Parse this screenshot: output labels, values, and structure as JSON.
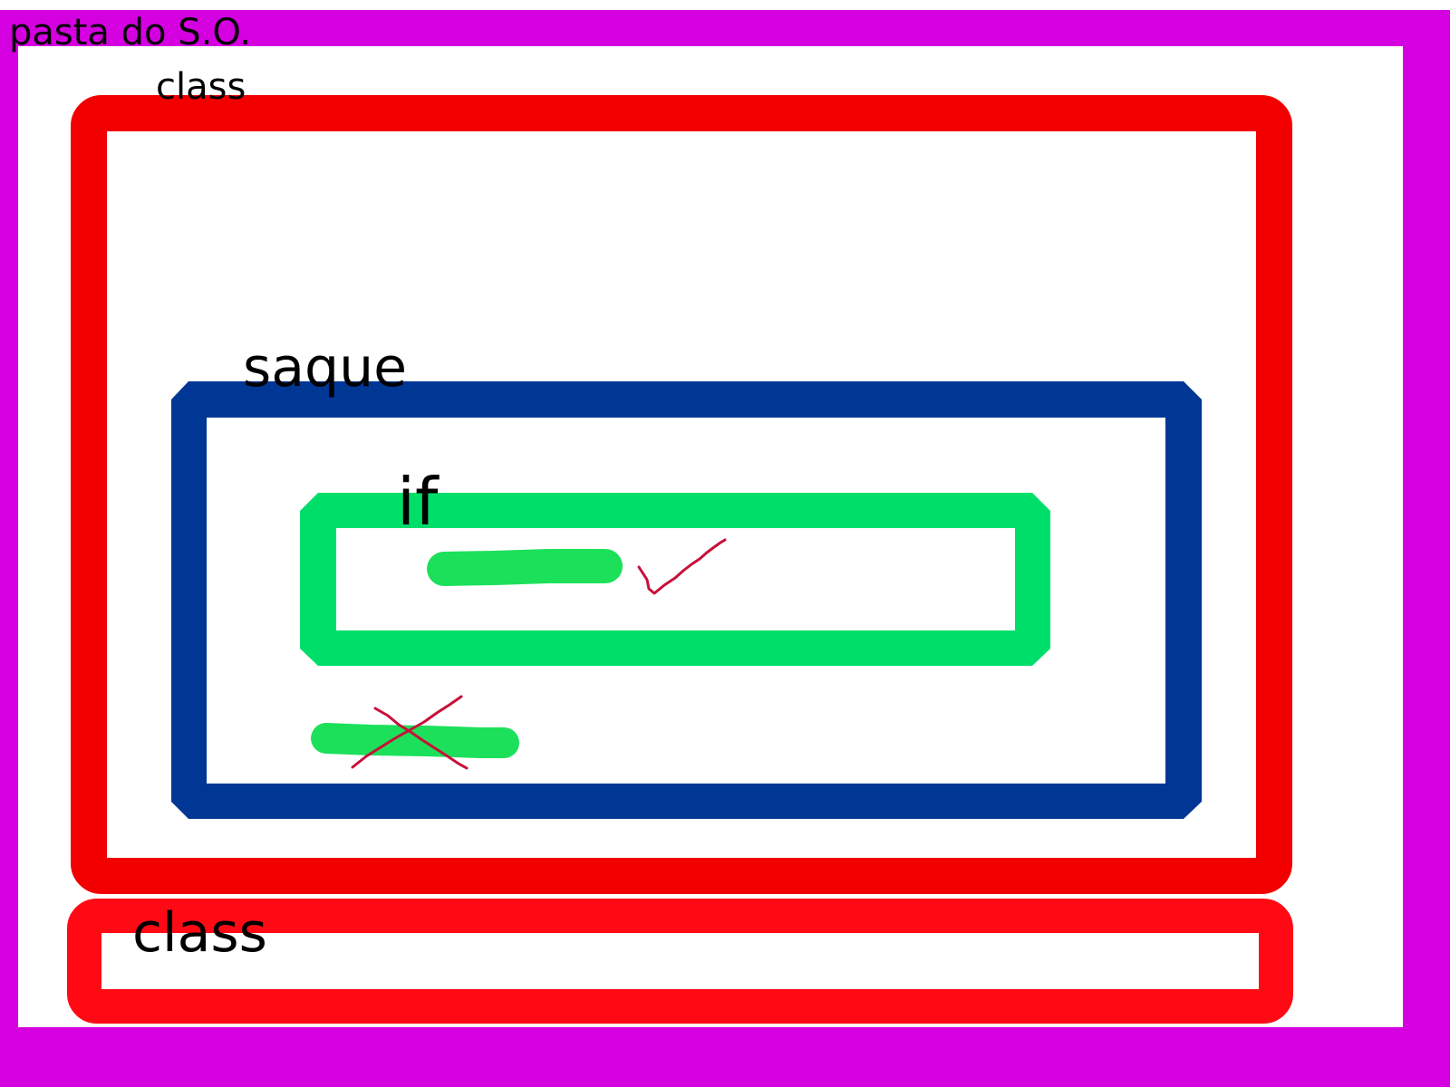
{
  "labels": {
    "root": "pasta do S.O.",
    "outer_class": "class",
    "method": "saque",
    "condition": "if",
    "second_class": "class"
  },
  "colors": {
    "root_border": "#d500e0",
    "class_border": "#f20000",
    "second_class_border": "#ff0a14",
    "method_border": "#003795",
    "if_border": "#00de6a",
    "code_stroke": "#1ce05a",
    "mark_color": "#c8103a",
    "text": "#000000",
    "background": "#ffffff"
  },
  "icons": {
    "executed_mark": "check-icon",
    "skipped_mark": "cross-icon"
  }
}
